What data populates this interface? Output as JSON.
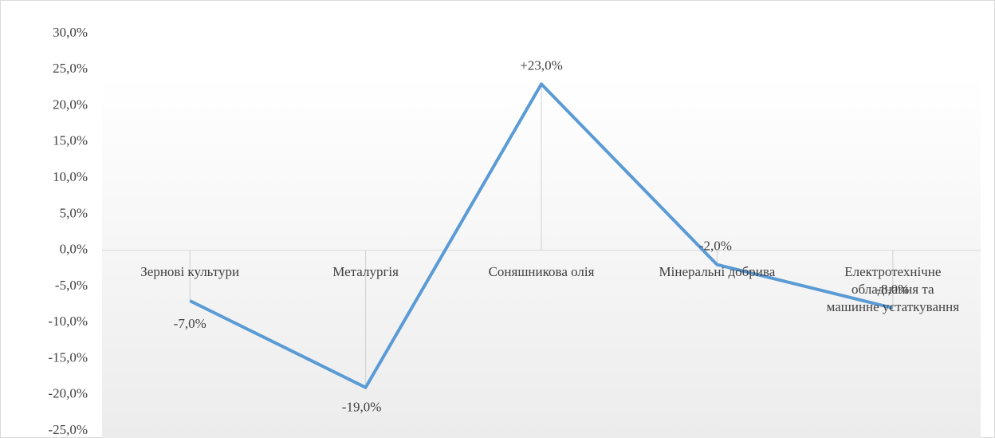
{
  "chart_data": {
    "type": "line",
    "categories": [
      "Зернові культури",
      "Металургія",
      "Соняшникова олія",
      "Мінеральні добрива",
      "Електротехнічне обладнання та машинне устаткування"
    ],
    "series": [
      {
        "name": null,
        "color": "#5b9bd5",
        "values": [
          -7,
          -19,
          23,
          -2,
          -8
        ],
        "value_labels": [
          "-7,0%",
          "-19,0%",
          "+23,0%",
          "-2,0%",
          "-8,0%"
        ]
      }
    ],
    "ylim": [
      -25,
      30
    ],
    "yticks": [
      {
        "value": -25,
        "label": "-25,0%"
      },
      {
        "value": -20,
        "label": "-20,0%"
      },
      {
        "value": -15,
        "label": "-15,0%"
      },
      {
        "value": -10,
        "label": "-10,0%"
      },
      {
        "value": -5,
        "label": "-5,0%"
      },
      {
        "value": 0,
        "label": "0,0%"
      },
      {
        "value": 5,
        "label": "5,0%"
      },
      {
        "value": 10,
        "label": "10,0%"
      },
      {
        "value": 15,
        "label": "15,0%"
      },
      {
        "value": 20,
        "label": "20,0%"
      },
      {
        "value": 25,
        "label": "25,0%"
      },
      {
        "value": 30,
        "label": "30,0%"
      }
    ],
    "grid": false
  }
}
